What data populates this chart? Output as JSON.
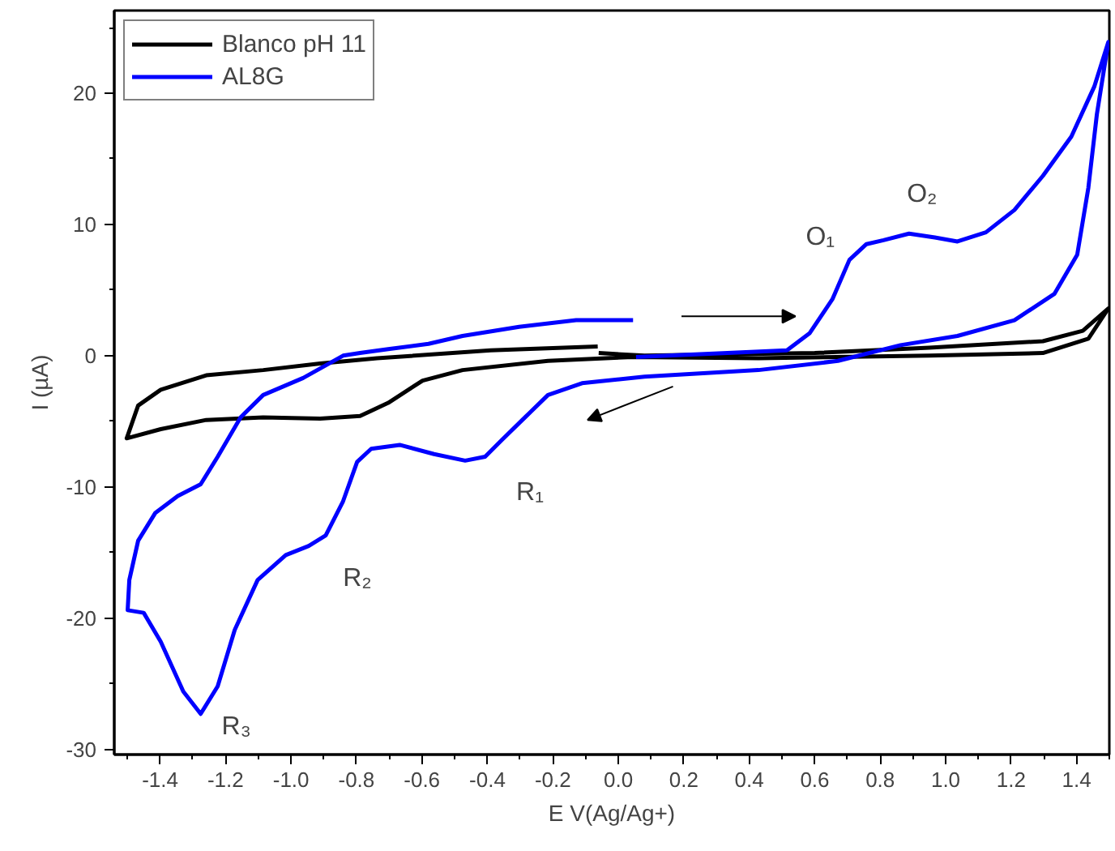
{
  "chart_data": {
    "type": "line",
    "xlabel": "E V(Ag/Ag+)",
    "ylabel": "I (µA)",
    "xlim": [
      -1.54,
      1.5
    ],
    "ylim": [
      -30.4,
      26.3
    ],
    "xticks": [
      {
        "value": -1.5,
        "label": null
      },
      -1.4,
      {
        "value": -1.3,
        "label": null
      },
      -1.2,
      {
        "value": -1.1,
        "label": null
      },
      {
        "value": -1.0,
        "label": "-1.0"
      },
      {
        "value": -0.9,
        "label": null
      },
      -0.8,
      {
        "value": -0.7,
        "label": null
      },
      -0.6,
      {
        "value": -0.5,
        "label": null
      },
      -0.4,
      {
        "value": -0.3,
        "label": null
      },
      -0.2,
      {
        "value": -0.1,
        "label": null
      },
      {
        "value": 0,
        "label": "0.0"
      },
      {
        "value": 0.1,
        "label": null
      },
      0.2,
      {
        "value": 0.3,
        "label": null
      },
      0.4,
      {
        "value": 0.5,
        "label": null
      },
      0.6,
      {
        "value": 0.7,
        "label": null
      },
      0.8,
      {
        "value": 0.9,
        "label": null
      },
      {
        "value": 1.0,
        "label": "1.0"
      },
      {
        "value": 1.1,
        "label": null
      },
      1.2,
      {
        "value": 1.3,
        "label": null
      },
      1.4,
      {
        "value": 1.5,
        "label": null
      }
    ],
    "yticks": [
      -30,
      {
        "value": -25,
        "label": null
      },
      -20,
      {
        "value": -15,
        "label": null
      },
      -10,
      {
        "value": -5,
        "label": null
      },
      0,
      {
        "value": 5,
        "label": null
      },
      10,
      {
        "value": 15,
        "label": null
      },
      20,
      {
        "value": 25,
        "label": null
      }
    ],
    "grid": false,
    "legend": "top left",
    "marker": "none",
    "line_style": "solid",
    "series": [
      {
        "name": "Blanco pH 11",
        "color": "#000000",
        "x": [
          -0.063,
          -0.39,
          -0.737,
          -0.911,
          -1.085,
          -1.259,
          -1.398,
          -1.467,
          -1.502,
          -1.398,
          -1.259,
          -1.085,
          -0.911,
          -0.789,
          -0.703,
          -0.598,
          -0.476,
          -0.215,
          0.045,
          0.428,
          0.95,
          1.297,
          1.436,
          1.497,
          1.419,
          1.297,
          0.95,
          0.6,
          0.08,
          -0.06
        ],
        "values": [
          0.7,
          0.4,
          -0.2,
          -0.6,
          -1.1,
          -1.5,
          -2.6,
          -3.8,
          -6.3,
          -5.6,
          -4.9,
          -4.7,
          -4.8,
          -4.6,
          -3.6,
          -1.9,
          -1.1,
          -0.4,
          -0.1,
          -0.2,
          0,
          0.2,
          1.3,
          3.6,
          1.9,
          1.1,
          0.6,
          0.2,
          0,
          0.2
        ]
      },
      {
        "name": "AL8G",
        "color": "#0000ff",
        "x": [
          0.054,
          0.515,
          0.584,
          0.654,
          0.706,
          0.758,
          0.81,
          0.888,
          0.967,
          1.036,
          1.123,
          1.21,
          1.297,
          1.384,
          1.454,
          1.497,
          1.462,
          1.436,
          1.402,
          1.332,
          1.21,
          1.036,
          0.862,
          0.671,
          0.428,
          0.08,
          -0.111,
          -0.215,
          -0.285,
          -0.355,
          -0.407,
          -0.468,
          -0.563,
          -0.668,
          -0.755,
          -0.798,
          -0.841,
          -0.894,
          -0.946,
          -1.016,
          -1.102,
          -1.172,
          -1.224,
          -1.276,
          -1.329,
          -1.398,
          -1.45,
          -1.499,
          -1.494,
          -1.467,
          -1.415,
          -1.346,
          -1.276,
          -1.224,
          -1.154,
          -1.085,
          -0.963,
          -0.841,
          -0.789,
          -0.703,
          -0.58,
          -0.476,
          -0.303,
          -0.129,
          0.045
        ],
        "values": [
          -0.1,
          0.4,
          1.7,
          4.3,
          7.3,
          8.5,
          8.8,
          9.3,
          9.0,
          8.7,
          9.4,
          11.1,
          13.7,
          16.7,
          20.5,
          23.9,
          18.4,
          12.8,
          7.7,
          4.7,
          2.7,
          1.5,
          0.8,
          -0.4,
          -1.1,
          -1.6,
          -2.1,
          -3.0,
          -4.7,
          -6.4,
          -7.7,
          -8.0,
          -7.5,
          -6.8,
          -7.1,
          -8.1,
          -11.1,
          -13.7,
          -14.5,
          -15.2,
          -17.1,
          -20.9,
          -25.2,
          -27.3,
          -25.6,
          -21.8,
          -19.6,
          -19.4,
          -17.1,
          -14.1,
          -12.0,
          -10.7,
          -9.8,
          -7.7,
          -4.7,
          -3.0,
          -1.7,
          0,
          0.2,
          0.5,
          0.9,
          1.5,
          2.2,
          2.7,
          2.7
        ]
      }
    ],
    "annotations": [
      {
        "text": "O₁",
        "x": 0.706,
        "y": 7.3
      },
      {
        "text": "O₂",
        "x": 0.888,
        "y": 9.3
      },
      {
        "text": "R₁",
        "x": -0.468,
        "y": -8.0
      },
      {
        "text": "R₂",
        "x": -0.946,
        "y": -14.5
      },
      {
        "text": "R₃",
        "x": -1.276,
        "y": -27.3
      }
    ]
  }
}
